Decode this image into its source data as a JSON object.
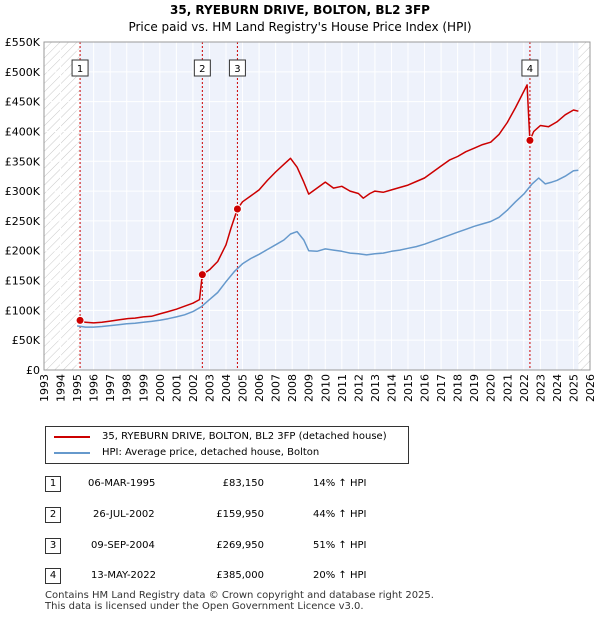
{
  "chart_data": {
    "type": "line",
    "title": "35, RYEBURN DRIVE, BOLTON, BL2 3FP",
    "subtitle": "Price paid vs. HM Land Registry's House Price Index (HPI)",
    "xlim": [
      1993,
      2026
    ],
    "ylim": [
      0,
      550000
    ],
    "x_ticks": [
      "1993",
      "1994",
      "1995",
      "1996",
      "1997",
      "1998",
      "1999",
      "2000",
      "2001",
      "2002",
      "2003",
      "2004",
      "2005",
      "2006",
      "2007",
      "2008",
      "2009",
      "2010",
      "2011",
      "2012",
      "2013",
      "2014",
      "2015",
      "2016",
      "2017",
      "2018",
      "2019",
      "2020",
      "2021",
      "2022",
      "2023",
      "2024",
      "2025",
      "2026"
    ],
    "y_ticks": [
      {
        "value": 0,
        "label": "£0"
      },
      {
        "value": 50000,
        "label": "£50K"
      },
      {
        "value": 100000,
        "label": "£100K"
      },
      {
        "value": 150000,
        "label": "£150K"
      },
      {
        "value": 200000,
        "label": "£200K"
      },
      {
        "value": 250000,
        "label": "£250K"
      },
      {
        "value": 300000,
        "label": "£300K"
      },
      {
        "value": 350000,
        "label": "£350K"
      },
      {
        "value": 400000,
        "label": "£400K"
      },
      {
        "value": 450000,
        "label": "£450K"
      },
      {
        "value": 500000,
        "label": "£500K"
      },
      {
        "value": 550000,
        "label": "£550K"
      }
    ],
    "series": [
      {
        "name": "35, RYEBURN DRIVE, BOLTON, BL2 3FP (detached house)",
        "color": "#cc0000",
        "points": [
          [
            1995.18,
            83150
          ],
          [
            1995.5,
            80000
          ],
          [
            1996,
            79000
          ],
          [
            1996.5,
            80000
          ],
          [
            1997,
            82000
          ],
          [
            1997.5,
            84000
          ],
          [
            1998,
            86000
          ],
          [
            1998.5,
            87000
          ],
          [
            1999,
            89000
          ],
          [
            1999.5,
            90000
          ],
          [
            2000,
            94000
          ],
          [
            2000.5,
            98000
          ],
          [
            2001,
            102000
          ],
          [
            2001.5,
            107000
          ],
          [
            2002.0,
            112000
          ],
          [
            2002.4,
            118000
          ],
          [
            2002.57,
            159950
          ],
          [
            2003,
            168000
          ],
          [
            2003.5,
            182000
          ],
          [
            2004,
            210000
          ],
          [
            2004.3,
            238000
          ],
          [
            2004.69,
            269950
          ],
          [
            2005,
            282000
          ],
          [
            2005.5,
            292000
          ],
          [
            2006,
            302000
          ],
          [
            2006.5,
            318000
          ],
          [
            2007,
            332000
          ],
          [
            2007.5,
            345000
          ],
          [
            2007.9,
            355000
          ],
          [
            2008.3,
            340000
          ],
          [
            2008.7,
            315000
          ],
          [
            2009.0,
            295000
          ],
          [
            2009.5,
            305000
          ],
          [
            2010,
            315000
          ],
          [
            2010.5,
            305000
          ],
          [
            2011,
            308000
          ],
          [
            2011.5,
            300000
          ],
          [
            2012,
            296000
          ],
          [
            2012.3,
            288000
          ],
          [
            2012.7,
            296000
          ],
          [
            2013,
            300000
          ],
          [
            2013.5,
            298000
          ],
          [
            2014,
            302000
          ],
          [
            2014.5,
            306000
          ],
          [
            2015,
            310000
          ],
          [
            2015.5,
            316000
          ],
          [
            2016,
            322000
          ],
          [
            2016.5,
            332000
          ],
          [
            2017,
            342000
          ],
          [
            2017.5,
            352000
          ],
          [
            2018,
            358000
          ],
          [
            2018.5,
            366000
          ],
          [
            2019,
            372000
          ],
          [
            2019.5,
            378000
          ],
          [
            2020,
            382000
          ],
          [
            2020.5,
            395000
          ],
          [
            2021,
            415000
          ],
          [
            2021.5,
            440000
          ],
          [
            2021.9,
            462000
          ],
          [
            2022.2,
            478000
          ],
          [
            2022.3,
            420000
          ],
          [
            2022.37,
            385000
          ],
          [
            2022.6,
            400000
          ],
          [
            2023,
            410000
          ],
          [
            2023.5,
            408000
          ],
          [
            2024,
            416000
          ],
          [
            2024.5,
            428000
          ],
          [
            2025,
            436000
          ],
          [
            2025.3,
            434000
          ]
        ]
      },
      {
        "name": "HPI: Average price, detached house, Bolton",
        "color": "#6699cc",
        "points": [
          [
            1995,
            74000
          ],
          [
            1995.5,
            72000
          ],
          [
            1996,
            72000
          ],
          [
            1996.5,
            73000
          ],
          [
            1997,
            74500
          ],
          [
            1997.5,
            76000
          ],
          [
            1998,
            77500
          ],
          [
            1998.5,
            78500
          ],
          [
            1999,
            80000
          ],
          [
            1999.5,
            81500
          ],
          [
            2000,
            83500
          ],
          [
            2000.5,
            86000
          ],
          [
            2001,
            89000
          ],
          [
            2001.5,
            92500
          ],
          [
            2002,
            98000
          ],
          [
            2002.5,
            106000
          ],
          [
            2003,
            118000
          ],
          [
            2003.5,
            130000
          ],
          [
            2004,
            148000
          ],
          [
            2004.5,
            165000
          ],
          [
            2005,
            178000
          ],
          [
            2005.5,
            187000
          ],
          [
            2006,
            194000
          ],
          [
            2006.5,
            202000
          ],
          [
            2007,
            210000
          ],
          [
            2007.5,
            218000
          ],
          [
            2007.9,
            228000
          ],
          [
            2008.3,
            232000
          ],
          [
            2008.7,
            218000
          ],
          [
            2009,
            200000
          ],
          [
            2009.5,
            199000
          ],
          [
            2010,
            203000
          ],
          [
            2010.5,
            201000
          ],
          [
            2011,
            199000
          ],
          [
            2011.5,
            196000
          ],
          [
            2012,
            195000
          ],
          [
            2012.5,
            193000
          ],
          [
            2013,
            195000
          ],
          [
            2013.5,
            196000
          ],
          [
            2014,
            199000
          ],
          [
            2014.5,
            201000
          ],
          [
            2015,
            204000
          ],
          [
            2015.5,
            207000
          ],
          [
            2016,
            211000
          ],
          [
            2016.5,
            216000
          ],
          [
            2017,
            221000
          ],
          [
            2017.5,
            226000
          ],
          [
            2018,
            231000
          ],
          [
            2018.5,
            236000
          ],
          [
            2019,
            241000
          ],
          [
            2019.5,
            245000
          ],
          [
            2020,
            249000
          ],
          [
            2020.5,
            256000
          ],
          [
            2021,
            268000
          ],
          [
            2021.5,
            282000
          ],
          [
            2022,
            295000
          ],
          [
            2022.5,
            312000
          ],
          [
            2022.9,
            322000
          ],
          [
            2023.3,
            312000
          ],
          [
            2023.7,
            315000
          ],
          [
            2024,
            318000
          ],
          [
            2024.5,
            325000
          ],
          [
            2025,
            334000
          ],
          [
            2025.3,
            335000
          ]
        ]
      }
    ],
    "sales": [
      {
        "label": "1",
        "x": 1995.18,
        "value": 83150
      },
      {
        "label": "2",
        "x": 2002.57,
        "value": 159950
      },
      {
        "label": "3",
        "x": 2004.69,
        "value": 269950
      },
      {
        "label": "4",
        "x": 2022.37,
        "value": 385000
      }
    ],
    "hatch_ranges": [
      [
        1993,
        1995.18
      ],
      [
        2025.3,
        2026
      ]
    ]
  },
  "legend": {
    "property": "35, RYEBURN DRIVE, BOLTON, BL2 3FP (detached house)",
    "hpi": "HPI: Average price, detached house, Bolton"
  },
  "transactions": [
    {
      "num": "1",
      "date": "06-MAR-1995",
      "price": "£83,150",
      "hpi": "14% ↑ HPI"
    },
    {
      "num": "2",
      "date": "26-JUL-2002",
      "price": "£159,950",
      "hpi": "44% ↑ HPI"
    },
    {
      "num": "3",
      "date": "09-SEP-2004",
      "price": "£269,950",
      "hpi": "51% ↑ HPI"
    },
    {
      "num": "4",
      "date": "13-MAY-2022",
      "price": "£385,000",
      "hpi": "20% ↑ HPI"
    }
  ],
  "footer": {
    "line1": "Contains HM Land Registry data © Crown copyright and database right 2025.",
    "line2": "This data is licensed under the Open Government Licence v3.0."
  },
  "colors": {
    "property_line": "#cc0000",
    "hpi_line": "#6699cc",
    "plot_bg": "#eef2fb",
    "grid": "#ffffff",
    "marker_border": "#cc0000"
  }
}
